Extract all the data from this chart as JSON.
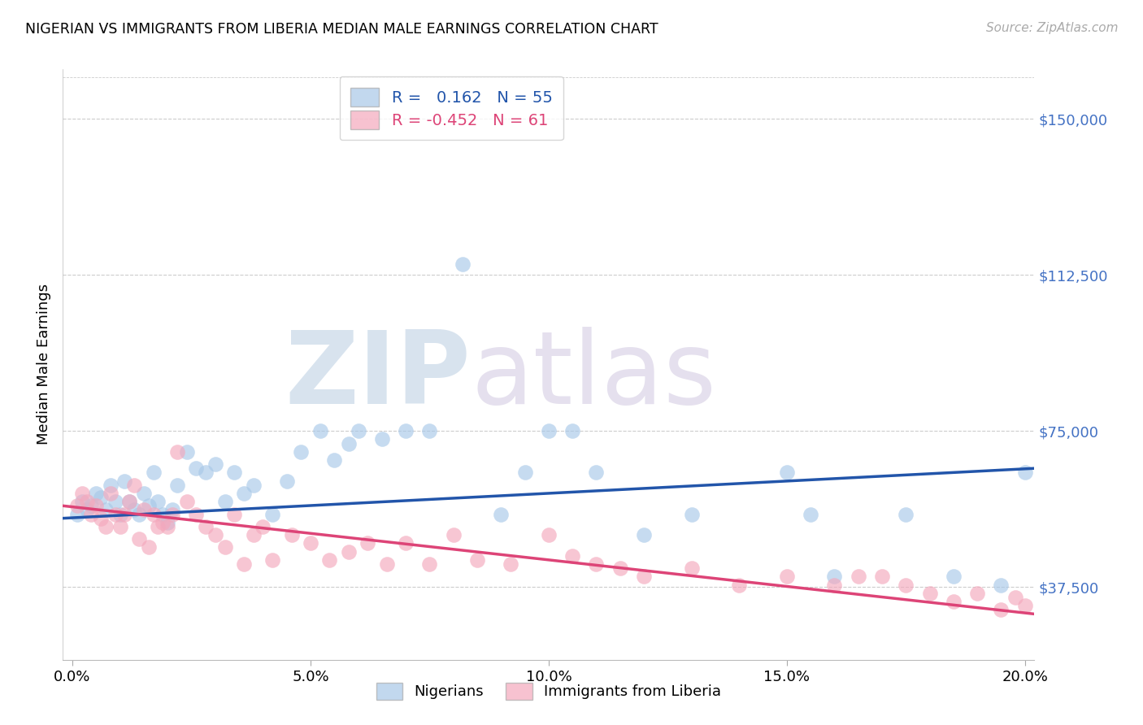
{
  "title": "NIGERIAN VS IMMIGRANTS FROM LIBERIA MEDIAN MALE EARNINGS CORRELATION CHART",
  "source": "Source: ZipAtlas.com",
  "ylabel": "Median Male Earnings",
  "ytick_labels": [
    "$37,500",
    "$75,000",
    "$112,500",
    "$150,000"
  ],
  "ytick_vals": [
    37500,
    75000,
    112500,
    150000
  ],
  "xlabel_ticks": [
    "0.0%",
    "5.0%",
    "10.0%",
    "15.0%",
    "20.0%"
  ],
  "xlabel_vals": [
    0.0,
    0.05,
    0.1,
    0.15,
    0.2
  ],
  "ylim": [
    20000,
    162000
  ],
  "xlim": [
    -0.002,
    0.202
  ],
  "blue_R": 0.162,
  "blue_N": 55,
  "pink_R": -0.452,
  "pink_N": 61,
  "blue_color": "#a8c8e8",
  "pink_color": "#f4a8bc",
  "blue_line_color": "#2255aa",
  "pink_line_color": "#dd4477",
  "legend_label_blue": "Nigerians",
  "legend_label_pink": "Immigrants from Liberia",
  "watermark_zip": "ZIP",
  "watermark_atlas": "atlas",
  "blue_scatter_x": [
    0.001,
    0.002,
    0.003,
    0.004,
    0.005,
    0.006,
    0.007,
    0.008,
    0.009,
    0.01,
    0.011,
    0.012,
    0.013,
    0.014,
    0.015,
    0.016,
    0.017,
    0.018,
    0.019,
    0.02,
    0.021,
    0.022,
    0.024,
    0.026,
    0.028,
    0.03,
    0.032,
    0.034,
    0.036,
    0.038,
    0.042,
    0.045,
    0.048,
    0.052,
    0.055,
    0.058,
    0.06,
    0.065,
    0.07,
    0.075,
    0.082,
    0.09,
    0.095,
    0.1,
    0.105,
    0.11,
    0.12,
    0.13,
    0.15,
    0.155,
    0.16,
    0.175,
    0.185,
    0.195,
    0.2
  ],
  "blue_scatter_y": [
    55000,
    58000,
    56000,
    57000,
    60000,
    59000,
    56000,
    62000,
    58000,
    55000,
    63000,
    58000,
    56000,
    55000,
    60000,
    57000,
    65000,
    58000,
    55000,
    53000,
    56000,
    62000,
    70000,
    66000,
    65000,
    67000,
    58000,
    65000,
    60000,
    62000,
    55000,
    63000,
    70000,
    75000,
    68000,
    72000,
    75000,
    73000,
    75000,
    75000,
    115000,
    55000,
    65000,
    75000,
    75000,
    65000,
    50000,
    55000,
    65000,
    55000,
    40000,
    55000,
    40000,
    38000,
    65000
  ],
  "pink_scatter_x": [
    0.001,
    0.002,
    0.003,
    0.004,
    0.005,
    0.006,
    0.007,
    0.008,
    0.009,
    0.01,
    0.011,
    0.012,
    0.013,
    0.014,
    0.015,
    0.016,
    0.017,
    0.018,
    0.019,
    0.02,
    0.021,
    0.022,
    0.024,
    0.026,
    0.028,
    0.03,
    0.032,
    0.034,
    0.036,
    0.038,
    0.04,
    0.042,
    0.046,
    0.05,
    0.054,
    0.058,
    0.062,
    0.066,
    0.07,
    0.075,
    0.08,
    0.085,
    0.092,
    0.1,
    0.105,
    0.11,
    0.115,
    0.12,
    0.13,
    0.14,
    0.15,
    0.16,
    0.165,
    0.17,
    0.175,
    0.18,
    0.185,
    0.19,
    0.195,
    0.198,
    0.2
  ],
  "pink_scatter_y": [
    57000,
    60000,
    58000,
    55000,
    57000,
    54000,
    52000,
    60000,
    55000,
    52000,
    55000,
    58000,
    62000,
    49000,
    56000,
    47000,
    55000,
    52000,
    53000,
    52000,
    55000,
    70000,
    58000,
    55000,
    52000,
    50000,
    47000,
    55000,
    43000,
    50000,
    52000,
    44000,
    50000,
    48000,
    44000,
    46000,
    48000,
    43000,
    48000,
    43000,
    50000,
    44000,
    43000,
    50000,
    45000,
    43000,
    42000,
    40000,
    42000,
    38000,
    40000,
    38000,
    40000,
    40000,
    38000,
    36000,
    34000,
    36000,
    32000,
    35000,
    33000
  ]
}
